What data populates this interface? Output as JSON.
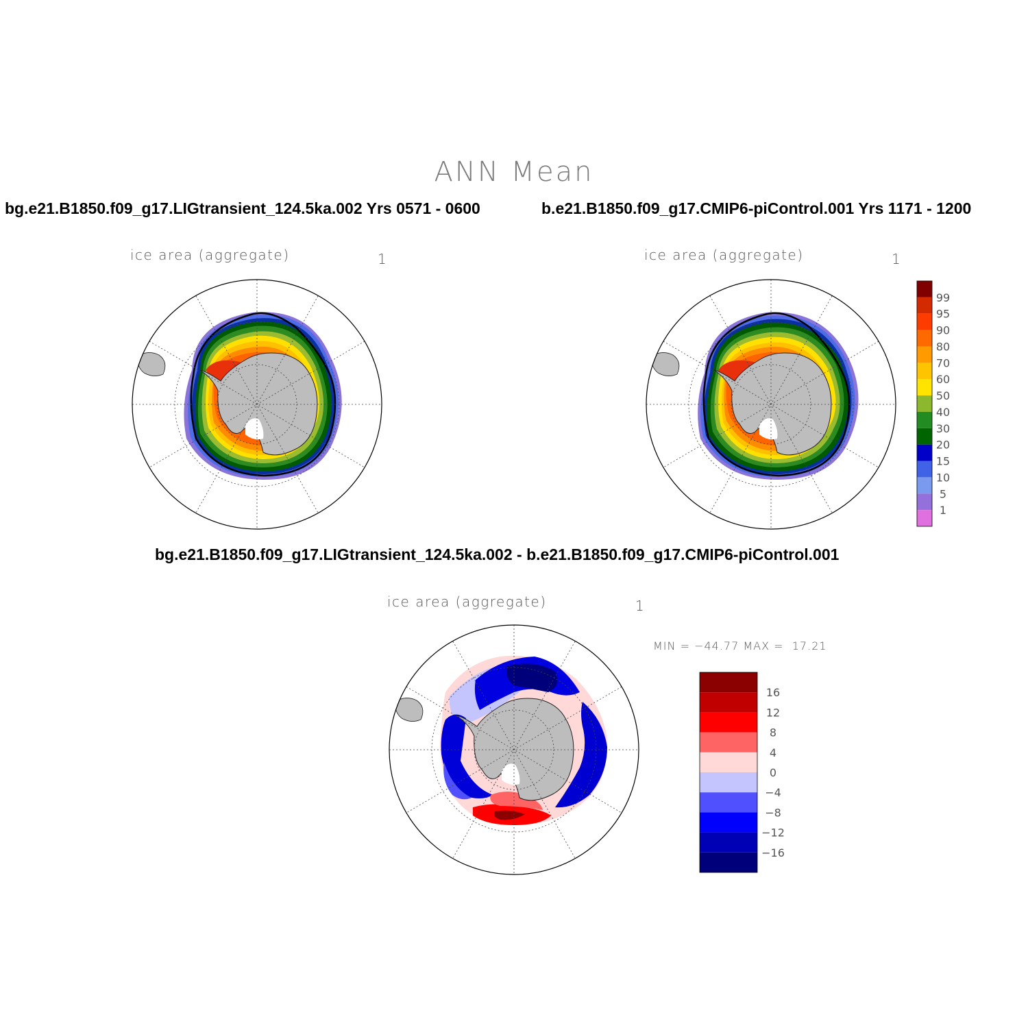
{
  "figure": {
    "title": "ANN  Mean",
    "case1_title": "bg.e21.B1850.f09_g17.LIGtransient_124.5ka.002  Yrs 0571 - 0600",
    "case2_title": "b.e21.B1850.f09_g17.CMIP6-piControl.001  Yrs 1171 - 1200",
    "diff_title": "bg.e21.B1850.f09_g17.LIGtransient_124.5ka.002 - b.e21.B1850.f09_g17.CMIP6-piControl.001"
  },
  "panels": [
    {
      "id": "case1",
      "label": "ice area  (aggregate)",
      "units": "1"
    },
    {
      "id": "case2",
      "label": "ice area  (aggregate)",
      "units": "1"
    },
    {
      "id": "diff",
      "label": "ice area  (aggregate)",
      "units": "1",
      "minmax": "MIN = −44.77 MAX =  17.21"
    }
  ],
  "colorbar_abs": {
    "labels": [
      "99",
      "95",
      "90",
      "80",
      "70",
      "60",
      "50",
      "40",
      "30",
      "20",
      "15",
      "10",
      "5",
      "1"
    ],
    "colors": [
      "#800000",
      "#d42a00",
      "#ff3c00",
      "#ff6a00",
      "#ff9a00",
      "#ffc400",
      "#ffe400",
      "#8cb82e",
      "#228b22",
      "#006400",
      "#0000c8",
      "#3f62e6",
      "#7a9af0",
      "#9370db",
      "#e070e0"
    ]
  },
  "colorbar_diff": {
    "labels": [
      "16",
      "12",
      "8",
      "4",
      "0",
      "−4",
      "−8",
      "−12",
      "−16"
    ],
    "colors": [
      "#8b0000",
      "#c00000",
      "#ff0000",
      "#ff6464",
      "#ffd8d8",
      "#c4c4ff",
      "#5050ff",
      "#0000ff",
      "#0000b4",
      "#00007a"
    ]
  }
}
